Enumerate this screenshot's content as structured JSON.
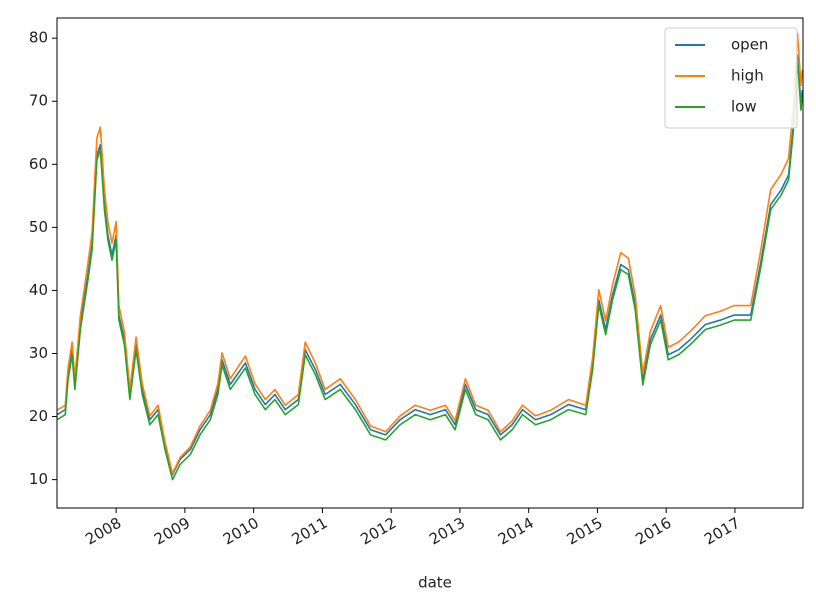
{
  "chart_data": {
    "type": "line",
    "x_label": "date",
    "x": [
      2007.14,
      2007.26,
      2007.3,
      2007.36,
      2007.4,
      2007.48,
      2007.59,
      2007.65,
      2007.72,
      2007.77,
      2007.83,
      2007.88,
      2007.94,
      2008.0,
      2008.04,
      2008.12,
      2008.2,
      2008.29,
      2008.38,
      2008.49,
      2008.61,
      2008.71,
      2008.82,
      2008.93,
      2009.08,
      2009.22,
      2009.37,
      2009.48,
      2009.54,
      2009.66,
      2009.88,
      2010.02,
      2010.17,
      2010.31,
      2010.46,
      2010.65,
      2010.75,
      2010.9,
      2011.04,
      2011.26,
      2011.48,
      2011.7,
      2011.92,
      2012.13,
      2012.35,
      2012.57,
      2012.79,
      2012.93,
      2013.08,
      2013.23,
      2013.41,
      2013.59,
      2013.76,
      2013.91,
      2014.1,
      2014.32,
      2014.58,
      2014.83,
      2014.93,
      2015.02,
      2015.12,
      2015.22,
      2015.34,
      2015.45,
      2015.55,
      2015.66,
      2015.77,
      2015.92,
      2016.03,
      2016.18,
      2016.35,
      2016.57,
      2016.79,
      2016.99,
      2017.23,
      2017.37,
      2017.52,
      2017.67,
      2017.78,
      2017.85,
      2017.91,
      2017.96,
      2017.98
    ],
    "series": [
      {
        "name": "open",
        "color": "#1f77b4",
        "values": [
          20.3,
          21.1,
          26.6,
          30.6,
          25.1,
          34.6,
          42.5,
          47.2,
          61.5,
          63.1,
          53.6,
          48.8,
          45.6,
          48.8,
          36.1,
          32.2,
          23.5,
          31.4,
          24.3,
          19.5,
          21.1,
          15.6,
          10.8,
          13.2,
          14.8,
          17.9,
          20.3,
          24.3,
          29,
          25.1,
          28.5,
          24.3,
          21.9,
          23.5,
          21.1,
          22.7,
          30.6,
          27.4,
          23.5,
          25.1,
          21.9,
          17.9,
          17.1,
          19.5,
          21.1,
          20.3,
          21.1,
          18.7,
          25.1,
          21.1,
          20.3,
          17.1,
          18.7,
          21.1,
          19.5,
          20.3,
          21.9,
          21.1,
          28.2,
          38.5,
          33.8,
          39.3,
          44.1,
          43.3,
          37.7,
          25.8,
          32.2,
          36.1,
          29.8,
          30.6,
          32.2,
          34.6,
          35.3,
          36.1,
          36.1,
          44.1,
          53.6,
          55.9,
          58.3,
          66.2,
          77.3,
          69.4,
          71.8
        ]
      },
      {
        "name": "high",
        "color": "#ff7f0e",
        "values": [
          21,
          21.8,
          27.6,
          31.8,
          26,
          36,
          44.3,
          49.2,
          64.2,
          65.9,
          56,
          50.9,
          47.5,
          50.9,
          37.6,
          33.5,
          24.3,
          32.6,
          25.2,
          20.1,
          21.8,
          16,
          11,
          13.5,
          15.2,
          18.5,
          21,
          25.2,
          30.1,
          26,
          29.6,
          25.2,
          22.7,
          24.3,
          21.8,
          23.5,
          31.8,
          28.4,
          24.3,
          26,
          22.7,
          18.5,
          17.6,
          20.1,
          21.8,
          21,
          21.8,
          19.3,
          26,
          21.8,
          21,
          17.6,
          19.3,
          21.8,
          20.1,
          21,
          22.7,
          21.8,
          29.3,
          40.1,
          35.2,
          40.9,
          46,
          45.1,
          39.2,
          26.8,
          33.5,
          37.6,
          31,
          31.8,
          33.5,
          36,
          36.7,
          37.6,
          37.6,
          46,
          56,
          58.4,
          60.9,
          69.2,
          80.8,
          72.5,
          75
        ]
      },
      {
        "name": "low",
        "color": "#2ca02c",
        "values": [
          19.5,
          20.3,
          25.8,
          29.8,
          24.3,
          33.8,
          41.7,
          46.4,
          60.7,
          62.3,
          52.8,
          48,
          44.8,
          48,
          35.3,
          31.4,
          22.7,
          30.6,
          23.5,
          18.7,
          20.3,
          14.8,
          10,
          12.4,
          14,
          17.1,
          19.5,
          23.5,
          28.2,
          24.3,
          27.7,
          23.5,
          21.1,
          22.7,
          20.3,
          21.9,
          29.8,
          26.6,
          22.7,
          24.3,
          21.1,
          17.1,
          16.3,
          18.7,
          20.3,
          19.5,
          20.3,
          17.9,
          24.3,
          20.3,
          19.5,
          16.3,
          17.9,
          20.3,
          18.7,
          19.5,
          21.1,
          20.3,
          27.4,
          37.7,
          33,
          38.5,
          43.3,
          42.5,
          36.9,
          25,
          31.4,
          35.3,
          29,
          29.8,
          31.4,
          33.8,
          34.5,
          35.3,
          35.3,
          43.3,
          52.8,
          55.1,
          57.5,
          65.4,
          76.5,
          68.6,
          71
        ]
      }
    ],
    "xlim": [
      2007.14,
      2017.99
    ],
    "xticks": [
      2008,
      2009,
      2010,
      2011,
      2012,
      2013,
      2014,
      2015,
      2016,
      2017
    ],
    "ylim": [
      5.5,
      83.2
    ],
    "yticks": [
      10,
      20,
      30,
      40,
      50,
      60,
      70,
      80
    ],
    "legend": "upper right"
  }
}
